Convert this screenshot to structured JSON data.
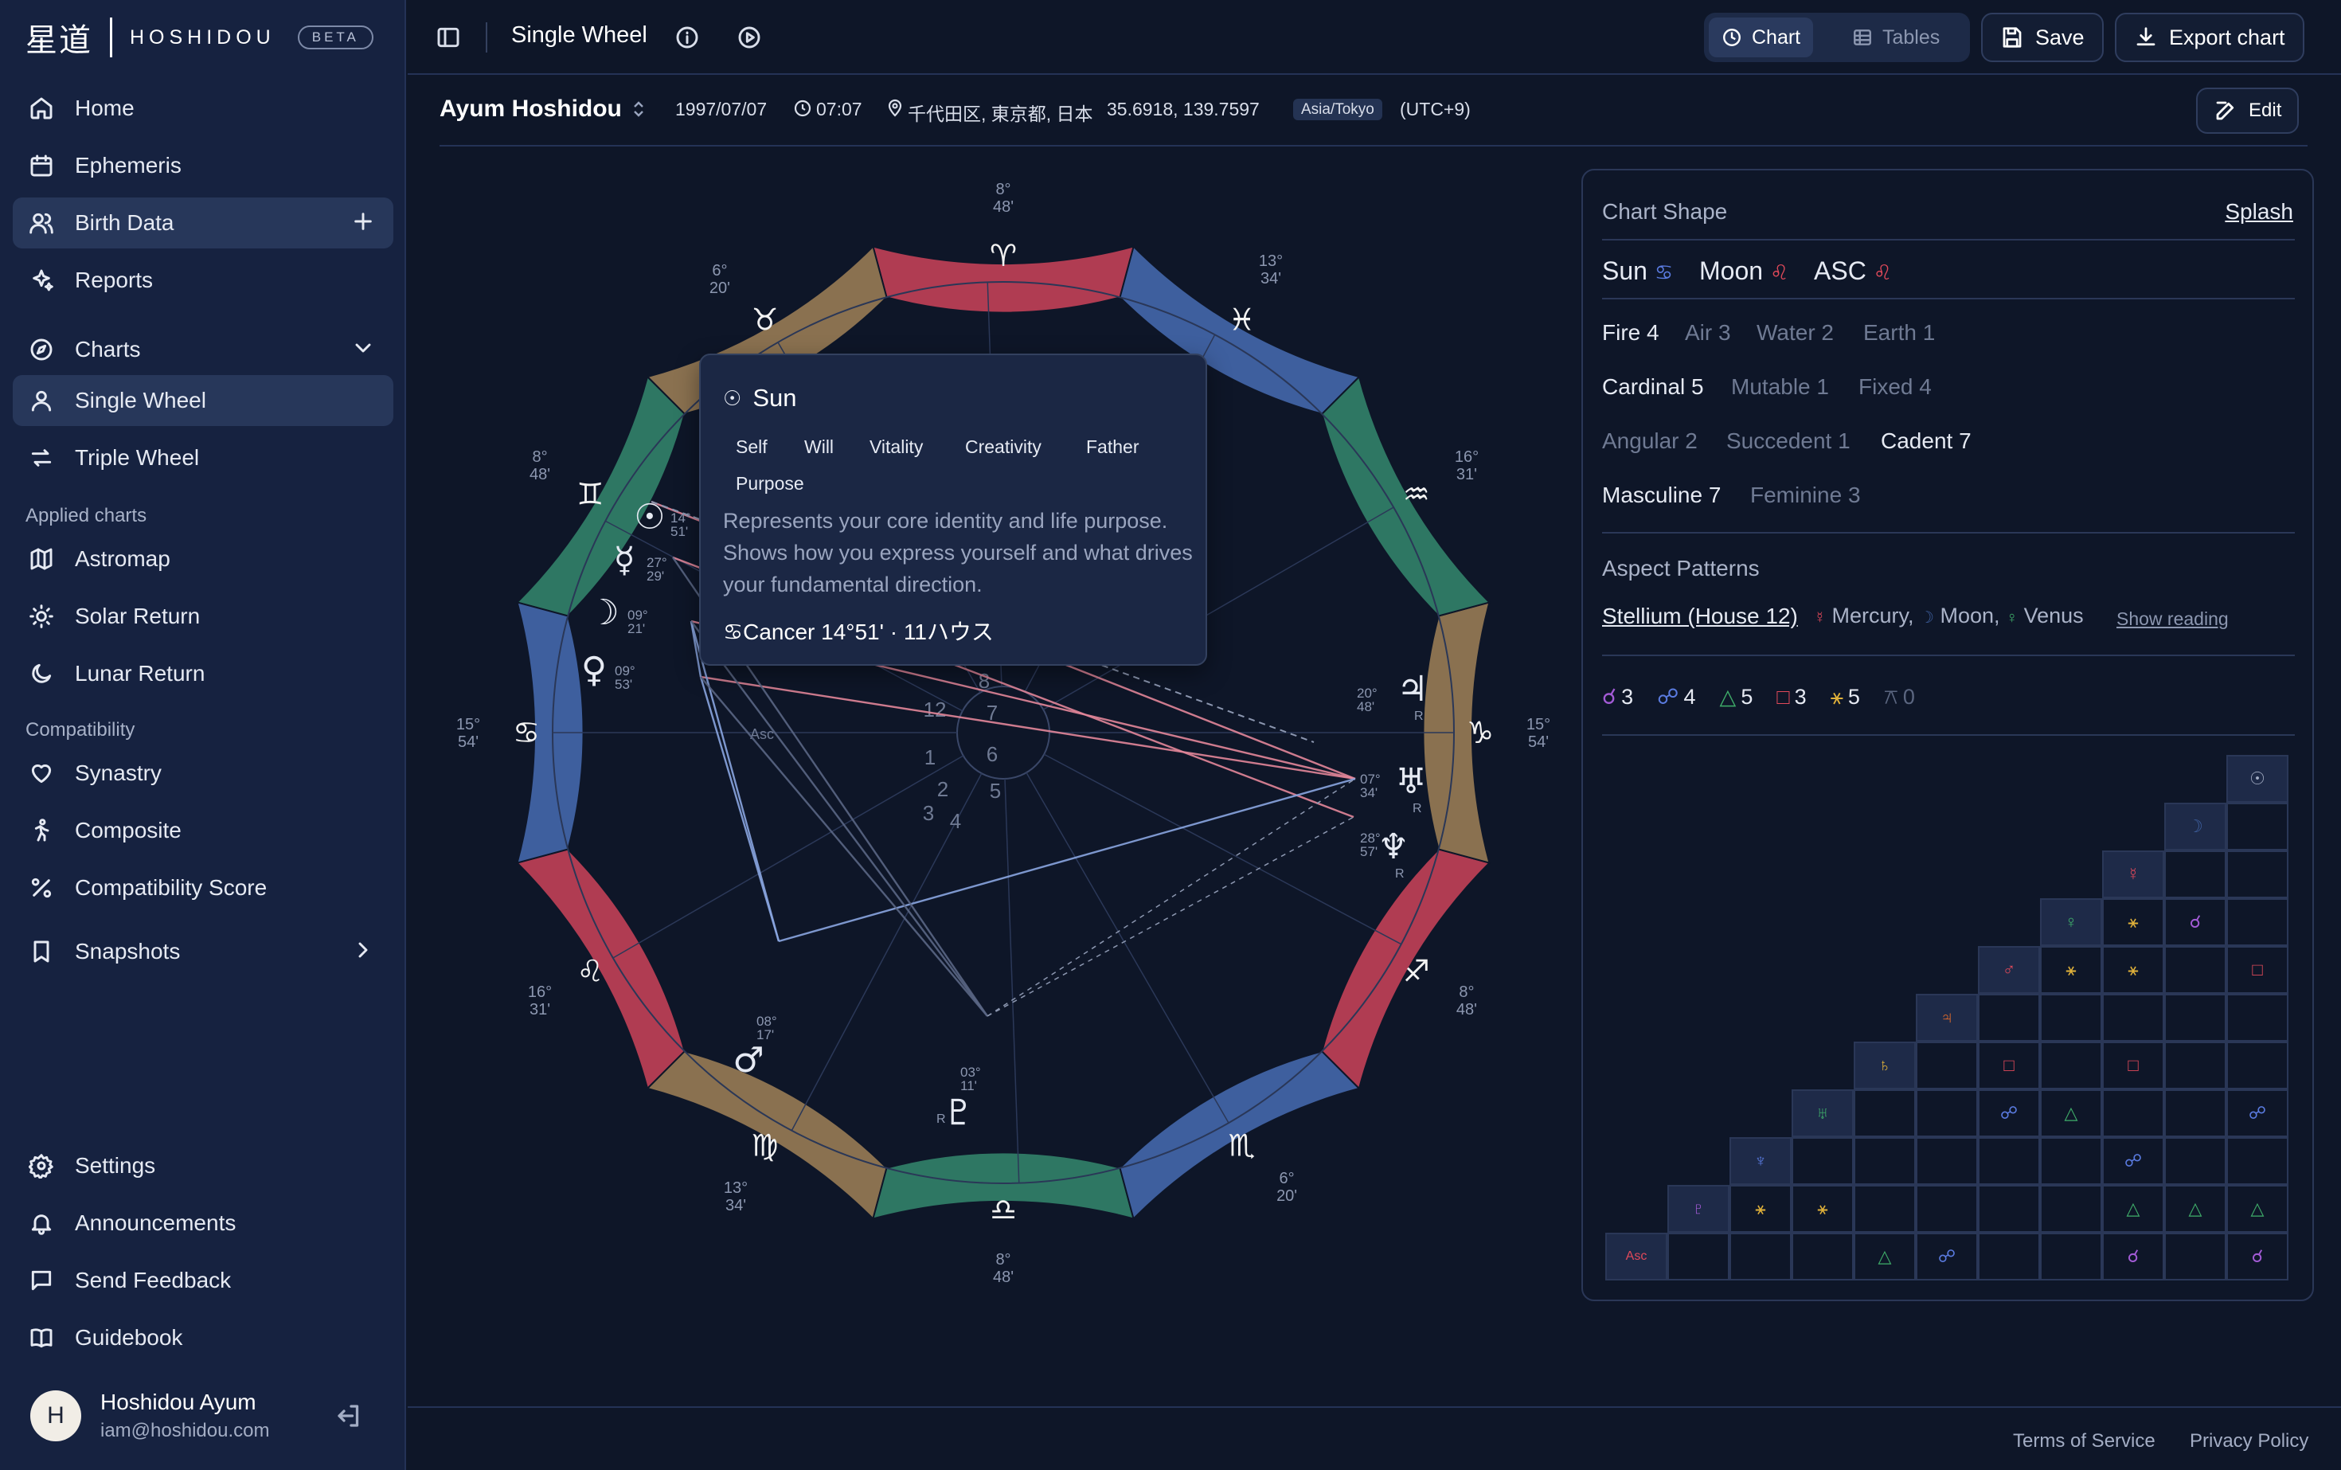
{
  "app": {
    "brand_kanji": "星道",
    "brand_name": "HOSHIDOU",
    "beta": "BETA"
  },
  "sidebar": {
    "home": "Home",
    "ephemeris": "Ephemeris",
    "birth_data": "Birth Data",
    "reports": "Reports",
    "charts": "Charts",
    "single_wheel": "Single Wheel",
    "triple_wheel": "Triple Wheel",
    "applied_label": "Applied charts",
    "astromap": "Astromap",
    "solar_return": "Solar Return",
    "lunar_return": "Lunar Return",
    "compat_label": "Compatibility",
    "synastry": "Synastry",
    "composite": "Composite",
    "compat_score": "Compatibility Score",
    "snapshots": "Snapshots",
    "settings": "Settings",
    "announcements": "Announcements",
    "send_feedback": "Send Feedback",
    "guidebook": "Guidebook"
  },
  "user": {
    "initial": "H",
    "name": "Hoshidou Ayum",
    "email": "iam@hoshidou.com"
  },
  "topbar": {
    "title": "Single Wheel",
    "chart": "Chart",
    "tables": "Tables",
    "save": "Save",
    "export": "Export chart"
  },
  "profile": {
    "name": "Ayum Hoshidou",
    "date": "1997/07/07",
    "time": "07:07",
    "place": "千代田区, 東京都, 日本",
    "coords": "35.6918, 139.7597",
    "tz": "Asia/Tokyo",
    "utc": "(UTC+9)",
    "edit": "Edit"
  },
  "wheel": {
    "signs": [
      "♈",
      "♉",
      "♊",
      "♋",
      "♌",
      "♍",
      "♎",
      "♏",
      "♐",
      "♑",
      "♒",
      "♓"
    ],
    "colors": {
      "fire": "#b03c52",
      "earth": "#8a7150",
      "air": "#2e7763",
      "water": "#3e5f9e"
    },
    "cusp_labels": [
      {
        "deg": "15°",
        "min": "54'"
      },
      {
        "deg": "16°",
        "min": "31'"
      },
      {
        "deg": "13°",
        "min": "34'"
      },
      {
        "deg": "8°",
        "min": "48'"
      },
      {
        "deg": "6°",
        "min": "20'"
      },
      {
        "deg": "8°",
        "min": "48'"
      },
      {
        "deg": "15°",
        "min": "54'"
      },
      {
        "deg": "16°",
        "min": "31'"
      },
      {
        "deg": "13°",
        "min": "34'"
      },
      {
        "deg": "8°",
        "min": "48'"
      },
      {
        "deg": "6°",
        "min": "20'"
      },
      {
        "deg": "8°",
        "min": "48'"
      }
    ],
    "houses": [
      "1",
      "2",
      "3",
      "4",
      "5",
      "6",
      "7",
      "8",
      "12"
    ],
    "asc_label": "Asc",
    "planets": [
      {
        "glyph": "☉",
        "deg": "14°",
        "min": "51'"
      },
      {
        "glyph": "☿",
        "deg": "27°",
        "min": "29'"
      },
      {
        "glyph": "☽",
        "deg": "09°",
        "min": "21'"
      },
      {
        "glyph": "♀",
        "deg": "09°",
        "min": "53'"
      },
      {
        "glyph": "♂",
        "deg": "08°",
        "min": "17'"
      },
      {
        "glyph": "♇",
        "deg": "03°",
        "min": "11'",
        "retro": "R"
      },
      {
        "glyph": "♃",
        "deg": "20°",
        "min": "48'",
        "retro": "R"
      },
      {
        "glyph": "♅",
        "deg": "07°",
        "min": "34'",
        "retro": "R"
      },
      {
        "glyph": "♆",
        "deg": "28°",
        "min": "57'",
        "retro": "R"
      }
    ]
  },
  "tooltip": {
    "glyph": "☉",
    "title": "Sun",
    "tags": [
      "Self",
      "Will",
      "Vitality",
      "Creativity",
      "Father",
      "Purpose"
    ],
    "desc": "Represents your core identity and life purpose. Shows how you express yourself and what drives your fundamental direction.",
    "foot": "♋Cancer 14°51' · 11ハウス"
  },
  "panel": {
    "shape_label": "Chart Shape",
    "shape_value": "Splash",
    "big3": [
      {
        "name": "Sun",
        "glyph": "♋"
      },
      {
        "name": "Moon",
        "glyph": "♌"
      },
      {
        "name": "ASC",
        "glyph": "♌"
      }
    ],
    "elements": [
      "Fire 4",
      "Air 3",
      "Water 2",
      "Earth 1"
    ],
    "modalities": [
      "Cardinal 5",
      "Mutable 1",
      "Fixed 4"
    ],
    "houses": [
      "Angular 2",
      "Succedent 1",
      "Cadent 7"
    ],
    "polarity": [
      "Masculine 7",
      "Feminine 3"
    ],
    "patterns_label": "Aspect Patterns",
    "stellium": "Stellium (House 12)",
    "mercury": "Mercury,",
    "moon": "Moon,",
    "venus": "Venus",
    "show_reading": "Show reading",
    "aspect_counts": [
      {
        "glyph": "☌",
        "count": "3",
        "color": "#a35bd6"
      },
      {
        "glyph": "☍",
        "count": "4",
        "color": "#5a7be0"
      },
      {
        "glyph": "△",
        "count": "5",
        "color": "#3fae6a"
      },
      {
        "glyph": "□",
        "count": "3",
        "color": "#e0495a"
      },
      {
        "glyph": "⚹",
        "count": "5",
        "color": "#e0b13a"
      },
      {
        "glyph": "⚻",
        "count": "0",
        "color": "#5b6680"
      }
    ],
    "grid_heads": [
      "☉",
      "☽",
      "☿",
      "♀",
      "♂",
      "♃",
      "♄",
      "♅",
      "♆",
      "♇",
      "Asc"
    ]
  },
  "footer": {
    "terms": "Terms of Service",
    "privacy": "Privacy Policy"
  }
}
